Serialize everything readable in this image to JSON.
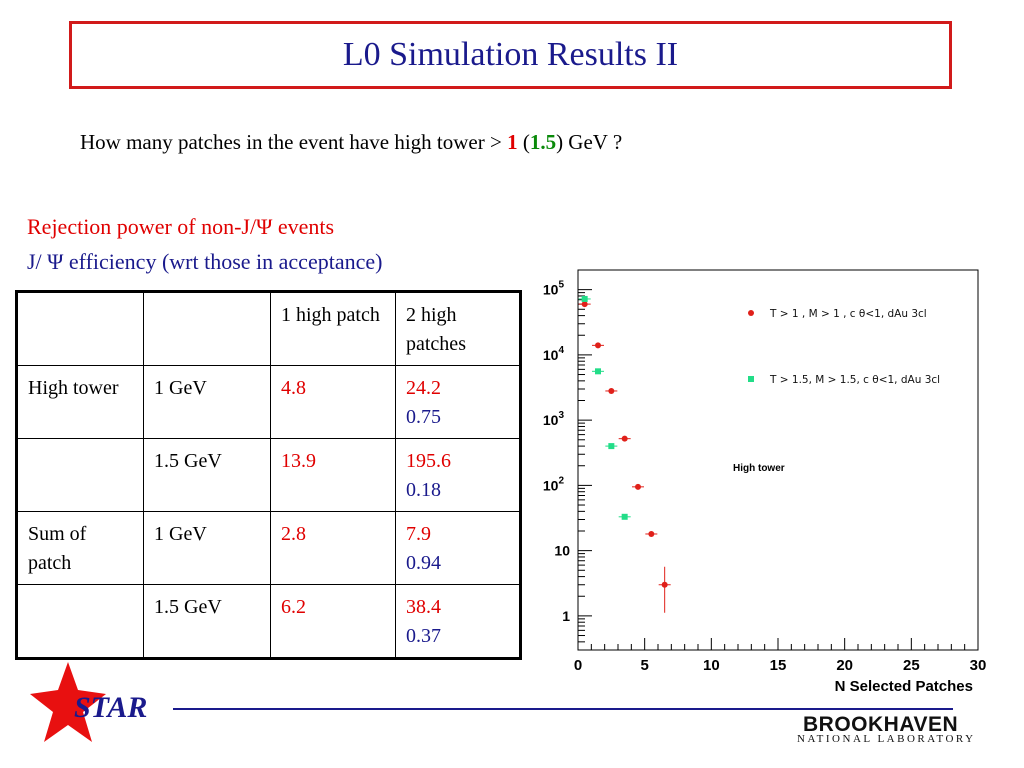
{
  "slide": {
    "title": "L0 Simulation Results II",
    "question": {
      "before": "How many patches in the event have high tower > ",
      "v1": "1",
      "mid_open": " (",
      "v2": "1.5",
      "after": ") GeV ?"
    },
    "rejection_line": "Rejection power of non-J/Ψ events",
    "efficiency_line": "J/ Ψ efficiency (wrt those in acceptance)"
  },
  "table": {
    "header": [
      "",
      "",
      "1 high patch",
      "2 high patches"
    ],
    "rows": [
      {
        "label": "High tower",
        "threshold": "1 GeV",
        "one": "4.8",
        "two_rej": "24.2",
        "two_eff": "0.75"
      },
      {
        "label": "",
        "threshold": "1.5 GeV",
        "one": "13.9",
        "two_rej": "195.6",
        "two_eff": "0.18"
      },
      {
        "label": "Sum of patch",
        "threshold": "1 GeV",
        "one": "2.8",
        "two_rej": "7.9",
        "two_eff": "0.94"
      },
      {
        "label": "",
        "threshold": "1.5 GeV",
        "one": "6.2",
        "two_rej": "38.4",
        "two_eff": "0.37"
      }
    ]
  },
  "chart_data": {
    "type": "scatter",
    "title": "",
    "annotation": "High tower",
    "xlabel": "N Selected Patches",
    "ylabel": "",
    "xlim": [
      0,
      30
    ],
    "ylim": [
      0.3,
      200000
    ],
    "yscale": "log",
    "x_ticks": [
      "0",
      "5",
      "10",
      "15",
      "20",
      "25",
      "30"
    ],
    "y_tick_labels": [
      {
        "value": 100000,
        "base": "10",
        "exp": "5"
      },
      {
        "value": 10000,
        "base": "10",
        "exp": "4"
      },
      {
        "value": 1000,
        "base": "10",
        "exp": "3"
      },
      {
        "value": 100,
        "base": "10",
        "exp": "2"
      },
      {
        "value": 10,
        "base": "10",
        "exp": ""
      },
      {
        "value": 1,
        "base": "1",
        "exp": ""
      }
    ],
    "legend_placement": "top-right",
    "series": [
      {
        "name": "T > 1  , M > 1  , c θ<1, dAu 3cl",
        "color": "#e0201a",
        "points": [
          {
            "x": 0.5,
            "y": 60000
          },
          {
            "x": 1.5,
            "y": 14000
          },
          {
            "x": 2.5,
            "y": 2800
          },
          {
            "x": 3.5,
            "y": 520
          },
          {
            "x": 4.5,
            "y": 95
          },
          {
            "x": 5.5,
            "y": 18
          },
          {
            "x": 6.5,
            "y": 3
          }
        ]
      },
      {
        "name": "T > 1.5, M > 1.5, c  θ<1, dAu 3cl",
        "color": "#22dd88",
        "points": [
          {
            "x": 0.5,
            "y": 72000
          },
          {
            "x": 1.5,
            "y": 5600
          },
          {
            "x": 2.5,
            "y": 400
          },
          {
            "x": 3.5,
            "y": 33
          }
        ]
      }
    ]
  },
  "footer": {
    "star": "STAR",
    "lab_main": "BROOKHAVEN",
    "lab_sub": "NATIONAL LABORATORY"
  }
}
